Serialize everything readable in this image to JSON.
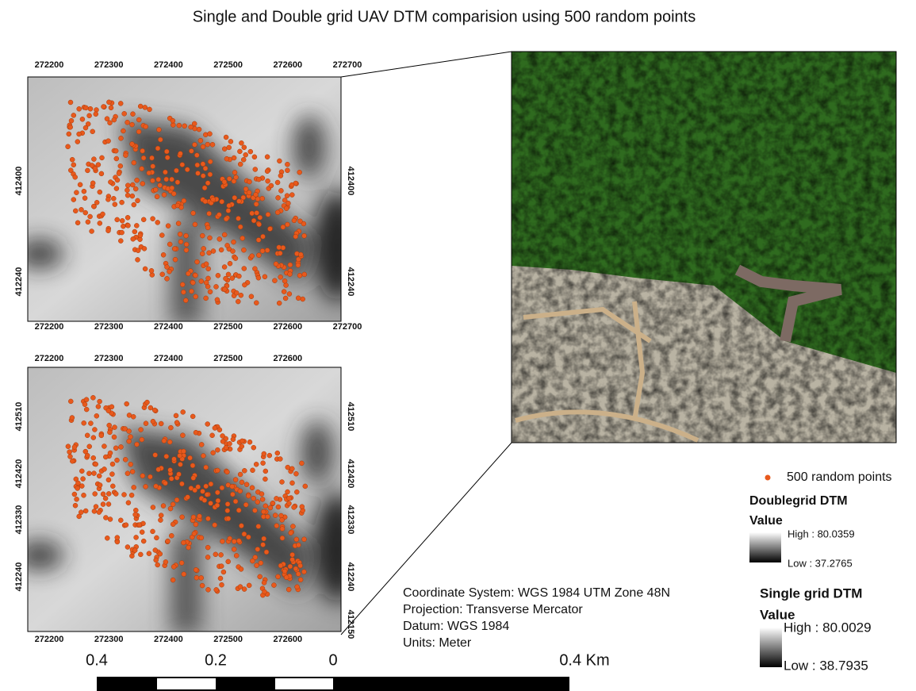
{
  "title": "Single and Double grid UAV DTM comparision using 500 random points",
  "map_top": {
    "x_labels_top": [
      "272200",
      "272300",
      "272400",
      "272500",
      "272600",
      "272700"
    ],
    "x_labels_bottom": [
      "272200",
      "272300",
      "272400",
      "272500",
      "272600",
      "272700"
    ],
    "y_labels_left": [
      "412400",
      "412240"
    ],
    "y_labels_right": [
      "412400",
      "412240"
    ]
  },
  "map_bottom": {
    "x_labels_top": [
      "272200",
      "272300",
      "272400",
      "272500",
      "272600"
    ],
    "x_labels_bottom": [
      "272200",
      "272300",
      "272400",
      "272500",
      "272600"
    ],
    "y_labels_left": [
      "412510",
      "412420",
      "412330",
      "412240"
    ],
    "y_labels_right": [
      "412510",
      "412420",
      "412330",
      "412240",
      "412150"
    ]
  },
  "legend": {
    "points": "500 random points",
    "double": {
      "title": "Doublegrid DTM",
      "value": "Value",
      "high": "High : 80.0359",
      "low": "Low : 37.2765"
    },
    "single": {
      "title": "Single grid  DTM",
      "value": "Value",
      "high": "High : 80.0029",
      "low": "Low : 38.7935"
    }
  },
  "info": [
    "Coordinate System: WGS 1984 UTM Zone 48N",
    "Projection: Transverse Mercator",
    "Datum: WGS 1984",
    "Units: Meter"
  ],
  "scale": [
    "0.4",
    "0.2",
    "0",
    "0.4 Km"
  ]
}
